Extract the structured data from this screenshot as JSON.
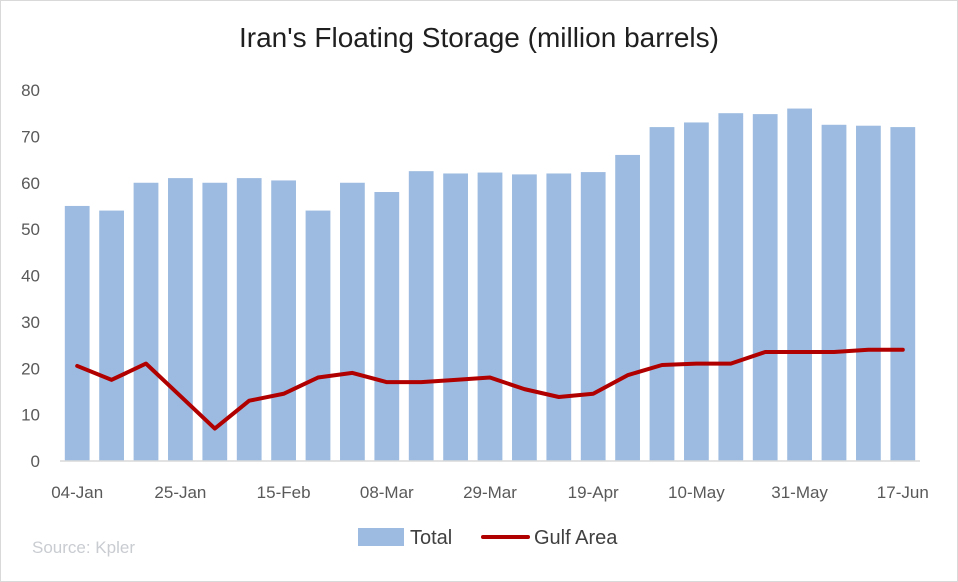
{
  "chart_data": {
    "type": "bar",
    "title": "Iran's Floating Storage (million barrels)",
    "source": "Source: Kpler",
    "xlabel": "",
    "ylabel": "",
    "ylim": [
      0,
      80
    ],
    "yticks": [
      0,
      10,
      20,
      30,
      40,
      50,
      60,
      70,
      80
    ],
    "x_tick_labels": [
      "04-Jan",
      "25-Jan",
      "15-Feb",
      "08-Mar",
      "29-Mar",
      "19-Apr",
      "10-May",
      "31-May",
      "17-Jun"
    ],
    "x_tick_label_every": 3,
    "grid": false,
    "legend": "bottom",
    "series": [
      {
        "name": "Total",
        "type": "bar",
        "color": "#9dbbe0",
        "values": [
          55,
          54,
          60,
          61,
          60,
          61,
          60.5,
          54,
          60,
          58,
          62.5,
          62,
          62.2,
          61.8,
          62,
          62.3,
          66,
          72,
          73,
          75,
          74.8,
          76,
          72.5,
          72.3,
          72
        ]
      },
      {
        "name": "Gulf Area",
        "type": "line",
        "color": "#b00000",
        "values": [
          20.5,
          17.5,
          21,
          14,
          7,
          13,
          14.5,
          18,
          19,
          17,
          17,
          17.5,
          18,
          15.5,
          13.8,
          14.5,
          18.5,
          20.7,
          21,
          21,
          23.5,
          23.5,
          23.5,
          24,
          24
        ]
      }
    ]
  }
}
